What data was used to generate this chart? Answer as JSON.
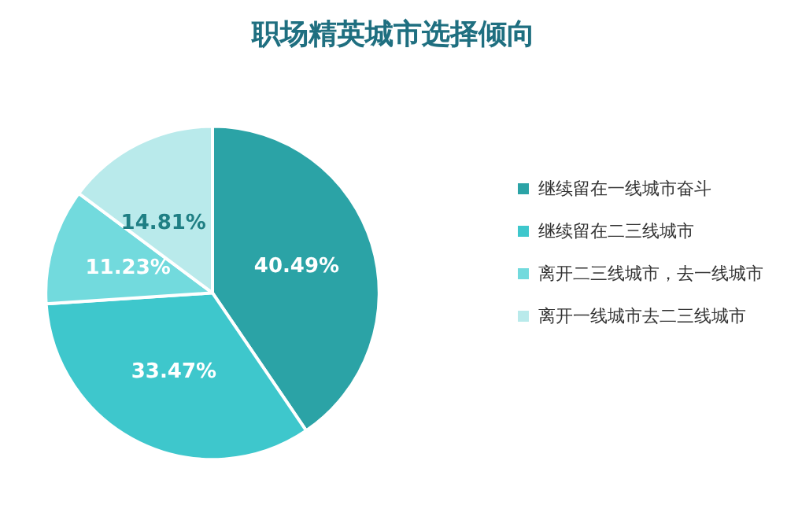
{
  "chart_data": {
    "type": "pie",
    "title": "职场精英城市选择倾向",
    "categories": [
      "继续留在一线城市奋斗",
      "继续留在二三线城市",
      "离开二三线城市，去一线城市",
      "离开一线城市去二三线城市"
    ],
    "values": [
      40.49,
      33.47,
      11.23,
      14.81
    ],
    "value_labels": [
      "40.49%",
      "33.47%",
      "11.23%",
      "14.81%"
    ],
    "colors": [
      "#2ba3a6",
      "#3ec7cc",
      "#72dadd",
      "#b9eaeb"
    ],
    "legend": "right"
  }
}
